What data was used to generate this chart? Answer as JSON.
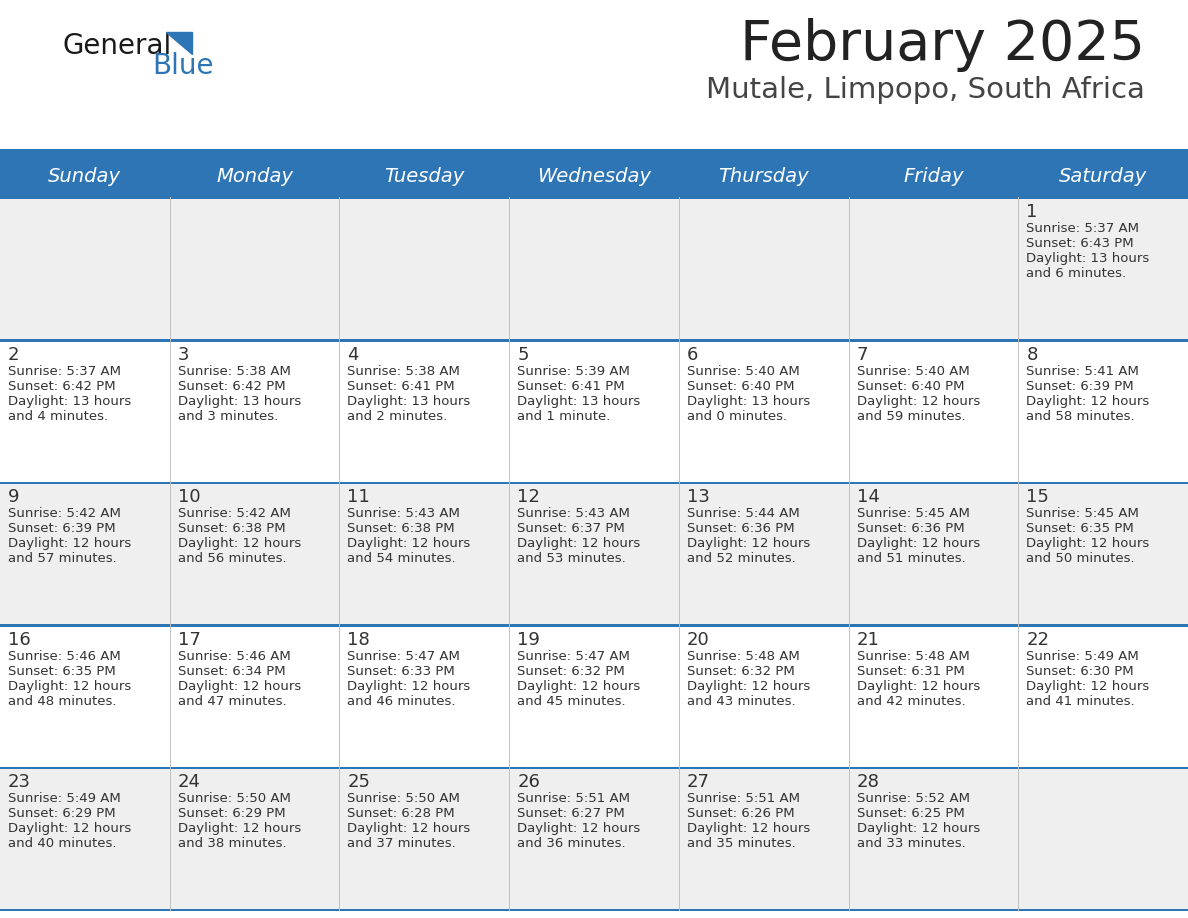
{
  "title": "February 2025",
  "subtitle": "Mutale, Limpopo, South Africa",
  "days_of_week": [
    "Sunday",
    "Monday",
    "Tuesday",
    "Wednesday",
    "Thursday",
    "Friday",
    "Saturday"
  ],
  "header_bg": "#2E75B6",
  "header_text": "#FFFFFF",
  "row_bg_light": "#EFEFEF",
  "row_bg_white": "#FFFFFF",
  "divider_color": "#2E75B6",
  "day_num_color": "#333333",
  "cell_text_color": "#333333",
  "title_color": "#222222",
  "subtitle_color": "#444444",
  "logo_general_color": "#1a1a1a",
  "logo_blue_color": "#2E75B6",
  "calendar_data": [
    [
      null,
      null,
      null,
      null,
      null,
      null,
      {
        "day": 1,
        "sunrise": "5:37 AM",
        "sunset": "6:43 PM",
        "daylight_h": "13 hours",
        "daylight_m": "and 6 minutes."
      }
    ],
    [
      {
        "day": 2,
        "sunrise": "5:37 AM",
        "sunset": "6:42 PM",
        "daylight_h": "13 hours",
        "daylight_m": "and 4 minutes."
      },
      {
        "day": 3,
        "sunrise": "5:38 AM",
        "sunset": "6:42 PM",
        "daylight_h": "13 hours",
        "daylight_m": "and 3 minutes."
      },
      {
        "day": 4,
        "sunrise": "5:38 AM",
        "sunset": "6:41 PM",
        "daylight_h": "13 hours",
        "daylight_m": "and 2 minutes."
      },
      {
        "day": 5,
        "sunrise": "5:39 AM",
        "sunset": "6:41 PM",
        "daylight_h": "13 hours",
        "daylight_m": "and 1 minute."
      },
      {
        "day": 6,
        "sunrise": "5:40 AM",
        "sunset": "6:40 PM",
        "daylight_h": "13 hours",
        "daylight_m": "and 0 minutes."
      },
      {
        "day": 7,
        "sunrise": "5:40 AM",
        "sunset": "6:40 PM",
        "daylight_h": "12 hours",
        "daylight_m": "and 59 minutes."
      },
      {
        "day": 8,
        "sunrise": "5:41 AM",
        "sunset": "6:39 PM",
        "daylight_h": "12 hours",
        "daylight_m": "and 58 minutes."
      }
    ],
    [
      {
        "day": 9,
        "sunrise": "5:42 AM",
        "sunset": "6:39 PM",
        "daylight_h": "12 hours",
        "daylight_m": "and 57 minutes."
      },
      {
        "day": 10,
        "sunrise": "5:42 AM",
        "sunset": "6:38 PM",
        "daylight_h": "12 hours",
        "daylight_m": "and 56 minutes."
      },
      {
        "day": 11,
        "sunrise": "5:43 AM",
        "sunset": "6:38 PM",
        "daylight_h": "12 hours",
        "daylight_m": "and 54 minutes."
      },
      {
        "day": 12,
        "sunrise": "5:43 AM",
        "sunset": "6:37 PM",
        "daylight_h": "12 hours",
        "daylight_m": "and 53 minutes."
      },
      {
        "day": 13,
        "sunrise": "5:44 AM",
        "sunset": "6:36 PM",
        "daylight_h": "12 hours",
        "daylight_m": "and 52 minutes."
      },
      {
        "day": 14,
        "sunrise": "5:45 AM",
        "sunset": "6:36 PM",
        "daylight_h": "12 hours",
        "daylight_m": "and 51 minutes."
      },
      {
        "day": 15,
        "sunrise": "5:45 AM",
        "sunset": "6:35 PM",
        "daylight_h": "12 hours",
        "daylight_m": "and 50 minutes."
      }
    ],
    [
      {
        "day": 16,
        "sunrise": "5:46 AM",
        "sunset": "6:35 PM",
        "daylight_h": "12 hours",
        "daylight_m": "and 48 minutes."
      },
      {
        "day": 17,
        "sunrise": "5:46 AM",
        "sunset": "6:34 PM",
        "daylight_h": "12 hours",
        "daylight_m": "and 47 minutes."
      },
      {
        "day": 18,
        "sunrise": "5:47 AM",
        "sunset": "6:33 PM",
        "daylight_h": "12 hours",
        "daylight_m": "and 46 minutes."
      },
      {
        "day": 19,
        "sunrise": "5:47 AM",
        "sunset": "6:32 PM",
        "daylight_h": "12 hours",
        "daylight_m": "and 45 minutes."
      },
      {
        "day": 20,
        "sunrise": "5:48 AM",
        "sunset": "6:32 PM",
        "daylight_h": "12 hours",
        "daylight_m": "and 43 minutes."
      },
      {
        "day": 21,
        "sunrise": "5:48 AM",
        "sunset": "6:31 PM",
        "daylight_h": "12 hours",
        "daylight_m": "and 42 minutes."
      },
      {
        "day": 22,
        "sunrise": "5:49 AM",
        "sunset": "6:30 PM",
        "daylight_h": "12 hours",
        "daylight_m": "and 41 minutes."
      }
    ],
    [
      {
        "day": 23,
        "sunrise": "5:49 AM",
        "sunset": "6:29 PM",
        "daylight_h": "12 hours",
        "daylight_m": "and 40 minutes."
      },
      {
        "day": 24,
        "sunrise": "5:50 AM",
        "sunset": "6:29 PM",
        "daylight_h": "12 hours",
        "daylight_m": "and 38 minutes."
      },
      {
        "day": 25,
        "sunrise": "5:50 AM",
        "sunset": "6:28 PM",
        "daylight_h": "12 hours",
        "daylight_m": "and 37 minutes."
      },
      {
        "day": 26,
        "sunrise": "5:51 AM",
        "sunset": "6:27 PM",
        "daylight_h": "12 hours",
        "daylight_m": "and 36 minutes."
      },
      {
        "day": 27,
        "sunrise": "5:51 AM",
        "sunset": "6:26 PM",
        "daylight_h": "12 hours",
        "daylight_m": "and 35 minutes."
      },
      {
        "day": 28,
        "sunrise": "5:52 AM",
        "sunset": "6:25 PM",
        "daylight_h": "12 hours",
        "daylight_m": "and 33 minutes."
      },
      null
    ]
  ]
}
